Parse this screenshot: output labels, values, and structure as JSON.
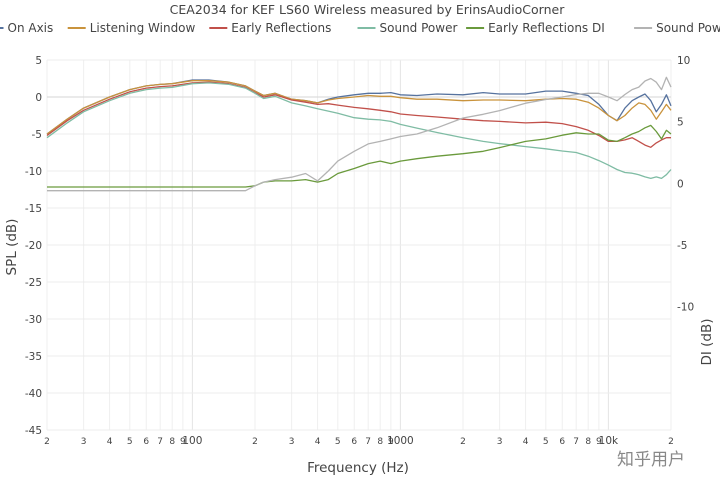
{
  "chart_data": {
    "type": "line",
    "title": "CEA2034 for KEF LS60 Wireless measured by ErinsAudioCorner",
    "xlabel": "Frequency (Hz)",
    "ylabel": "SPL (dB)",
    "y2label": "DI (dB)",
    "xscale": "log",
    "xlim": [
      20,
      20000
    ],
    "ylim": [
      -45,
      5
    ],
    "y2lim": [
      -20,
      10
    ],
    "grid": true,
    "legend_position": "top",
    "x_tick_labels": [
      {
        "value": 20,
        "label": "2"
      },
      {
        "value": 30,
        "label": "3"
      },
      {
        "value": 40,
        "label": "4"
      },
      {
        "value": 50,
        "label": "5"
      },
      {
        "value": 60,
        "label": "6"
      },
      {
        "value": 70,
        "label": "7"
      },
      {
        "value": 80,
        "label": "8"
      },
      {
        "value": 90,
        "label": "9"
      },
      {
        "value": 100,
        "label": "100"
      },
      {
        "value": 200,
        "label": "2"
      },
      {
        "value": 300,
        "label": "3"
      },
      {
        "value": 400,
        "label": "4"
      },
      {
        "value": 500,
        "label": "5"
      },
      {
        "value": 600,
        "label": "6"
      },
      {
        "value": 700,
        "label": "7"
      },
      {
        "value": 800,
        "label": "8"
      },
      {
        "value": 900,
        "label": "9"
      },
      {
        "value": 1000,
        "label": "1000"
      },
      {
        "value": 2000,
        "label": "2"
      },
      {
        "value": 3000,
        "label": "3"
      },
      {
        "value": 4000,
        "label": "4"
      },
      {
        "value": 5000,
        "label": "5"
      },
      {
        "value": 6000,
        "label": "6"
      },
      {
        "value": 7000,
        "label": "7"
      },
      {
        "value": 8000,
        "label": "8"
      },
      {
        "value": 9000,
        "label": "9"
      },
      {
        "value": 10000,
        "label": "10k"
      },
      {
        "value": 20000,
        "label": "2"
      }
    ],
    "y_ticks": [
      5,
      0,
      -5,
      -10,
      -15,
      -20,
      -25,
      -30,
      -35,
      -40,
      -45
    ],
    "y2_ticks": [
      10,
      5,
      0,
      -5,
      -10
    ],
    "x": [
      20,
      25,
      30,
      40,
      50,
      60,
      70,
      80,
      100,
      120,
      150,
      180,
      200,
      220,
      250,
      300,
      350,
      400,
      450,
      500,
      600,
      700,
      800,
      900,
      1000,
      1200,
      1500,
      2000,
      2500,
      3000,
      4000,
      5000,
      6000,
      7000,
      8000,
      9000,
      10000,
      11000,
      12000,
      13000,
      14000,
      15000,
      16000,
      17000,
      18000,
      19000,
      20000
    ],
    "series": [
      {
        "name": "On Axis",
        "axis": "y",
        "color": "#56729e",
        "values": [
          -5,
          -3,
          -1.5,
          0,
          1,
          1.5,
          1.7,
          1.8,
          2.3,
          2.3,
          2.0,
          1.5,
          0.8,
          0.2,
          0.5,
          -0.3,
          -0.5,
          -0.8,
          -0.3,
          0,
          0.3,
          0.5,
          0.5,
          0.6,
          0.3,
          0.2,
          0.4,
          0.3,
          0.6,
          0.4,
          0.4,
          0.8,
          0.8,
          0.5,
          0.2,
          -1,
          -2.5,
          -3.2,
          -1.5,
          -0.5,
          0,
          0.4,
          -0.5,
          -2.0,
          -1.0,
          0.3,
          -1.2
        ]
      },
      {
        "name": "Listening Window",
        "axis": "y",
        "color": "#c9933c",
        "values": [
          -5,
          -3,
          -1.5,
          0,
          1,
          1.5,
          1.7,
          1.8,
          2.2,
          2.2,
          2.0,
          1.5,
          0.8,
          0.2,
          0.5,
          -0.3,
          -0.5,
          -0.8,
          -0.4,
          -0.2,
          0,
          0.2,
          0.1,
          0.1,
          -0.1,
          -0.3,
          -0.3,
          -0.5,
          -0.4,
          -0.4,
          -0.5,
          -0.3,
          -0.2,
          -0.3,
          -0.7,
          -1.5,
          -2.5,
          -3.2,
          -2.5,
          -1.5,
          -0.8,
          -1.0,
          -1.8,
          -3.0,
          -2.0,
          -1.0,
          -1.8
        ]
      },
      {
        "name": "Early Reflections",
        "axis": "y",
        "color": "#c1504a",
        "values": [
          -5.2,
          -3.2,
          -1.8,
          -0.3,
          0.7,
          1.2,
          1.4,
          1.5,
          1.9,
          2.0,
          1.8,
          1.3,
          0.6,
          0,
          0.3,
          -0.4,
          -0.7,
          -1.0,
          -0.9,
          -1.1,
          -1.4,
          -1.6,
          -1.8,
          -2.0,
          -2.3,
          -2.5,
          -2.7,
          -3.0,
          -3.2,
          -3.3,
          -3.5,
          -3.4,
          -3.6,
          -4.0,
          -4.5,
          -5.2,
          -6.0,
          -6.0,
          -5.8,
          -5.5,
          -6.0,
          -6.5,
          -6.8,
          -6.2,
          -5.8,
          -5.5,
          -5.5
        ]
      },
      {
        "name": "Sound Power",
        "axis": "y",
        "color": "#7fbca4",
        "values": [
          -5.5,
          -3.5,
          -2,
          -0.5,
          0.5,
          1.0,
          1.2,
          1.3,
          1.8,
          1.9,
          1.7,
          1.2,
          0.5,
          -0.2,
          0.1,
          -0.8,
          -1.2,
          -1.6,
          -1.9,
          -2.2,
          -2.8,
          -3.0,
          -3.1,
          -3.3,
          -3.7,
          -4.2,
          -4.8,
          -5.5,
          -6.0,
          -6.3,
          -6.7,
          -7.0,
          -7.3,
          -7.5,
          -8.0,
          -8.6,
          -9.2,
          -9.8,
          -10.2,
          -10.3,
          -10.5,
          -10.8,
          -11.0,
          -10.8,
          -11.0,
          -10.5,
          -9.8
        ]
      },
      {
        "name": "Early Reflections DI",
        "axis": "y2",
        "color": "#6a9a3c",
        "values": [
          -0.3,
          -0.3,
          -0.3,
          -0.3,
          -0.3,
          -0.3,
          -0.3,
          -0.3,
          -0.3,
          -0.3,
          -0.3,
          -0.3,
          -0.2,
          0.1,
          0.2,
          0.2,
          0.3,
          0.1,
          0.3,
          0.8,
          1.2,
          1.6,
          1.8,
          1.6,
          1.8,
          2.0,
          2.2,
          2.4,
          2.6,
          2.9,
          3.4,
          3.6,
          3.9,
          4.1,
          4.0,
          4.0,
          3.5,
          3.4,
          3.7,
          4.0,
          4.2,
          4.5,
          4.7,
          4.2,
          3.6,
          4.3,
          4.0
        ]
      },
      {
        "name": "Sound Power DI",
        "axis": "y2",
        "color": "#b3b3b3",
        "values": [
          -0.6,
          -0.6,
          -0.6,
          -0.6,
          -0.6,
          -0.6,
          -0.6,
          -0.6,
          -0.6,
          -0.6,
          -0.6,
          -0.6,
          -0.2,
          0.1,
          0.3,
          0.5,
          0.8,
          0.2,
          1.0,
          1.8,
          2.6,
          3.2,
          3.4,
          3.6,
          3.8,
          4.0,
          4.5,
          5.3,
          5.6,
          5.9,
          6.5,
          6.8,
          7.0,
          7.2,
          7.3,
          7.3,
          7.0,
          6.7,
          7.2,
          7.6,
          7.8,
          8.3,
          8.5,
          8.2,
          7.6,
          8.6,
          7.8
        ]
      }
    ]
  },
  "watermark": "知乎用户"
}
